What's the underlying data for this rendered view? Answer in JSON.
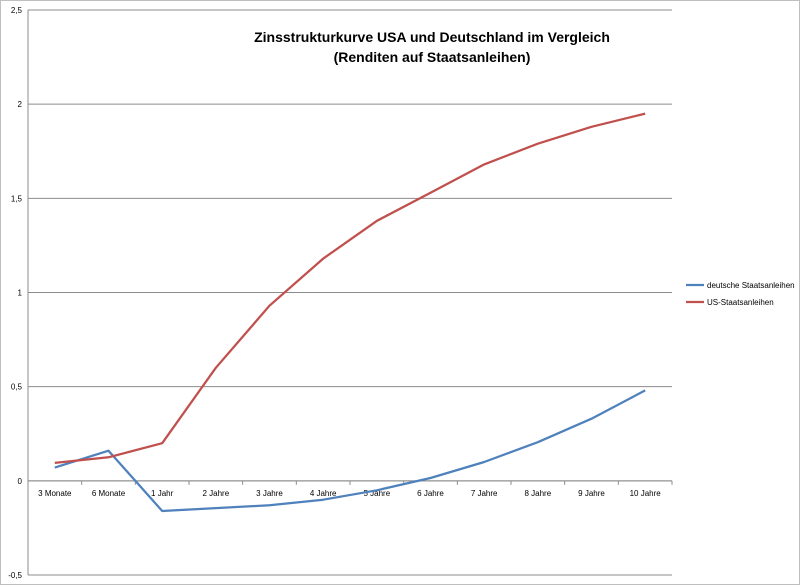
{
  "chart_data": {
    "type": "line",
    "title": "Zinsstrukturkurve USA und Deutschland im Vergleich",
    "subtitle": "(Renditen auf Staatsanleihen)",
    "categories": [
      "3 Monate",
      "6 Monate",
      "1 Jahr",
      "2 Jahre",
      "3 Jahre",
      "4 Jahre",
      "5 Jahre",
      "6 Jahre",
      "7 Jahre",
      "8 Jahre",
      "9 Jahre",
      "10 Jahre"
    ],
    "series": [
      {
        "name": "deutsche Staatsanleihen",
        "color": "#4f81bd",
        "values": [
          0.07,
          0.16,
          -0.16,
          -0.145,
          -0.13,
          -0.1,
          -0.05,
          0.015,
          0.1,
          0.205,
          0.33,
          0.48
        ]
      },
      {
        "name": "US-Staatsanleihen",
        "color": "#c0504d",
        "values": [
          0.095,
          0.125,
          0.2,
          0.6,
          0.93,
          1.18,
          1.38,
          1.53,
          1.68,
          1.79,
          1.88,
          1.95
        ]
      }
    ],
    "ylim": [
      -0.5,
      2.5
    ],
    "yticks": [
      "-0,5",
      "0",
      "0,5",
      "1",
      "1,5",
      "2",
      "2,5"
    ],
    "ytick_values": [
      -0.5,
      0,
      0.5,
      1,
      1.5,
      2,
      2.5
    ],
    "grid": true,
    "legend": "right"
  }
}
